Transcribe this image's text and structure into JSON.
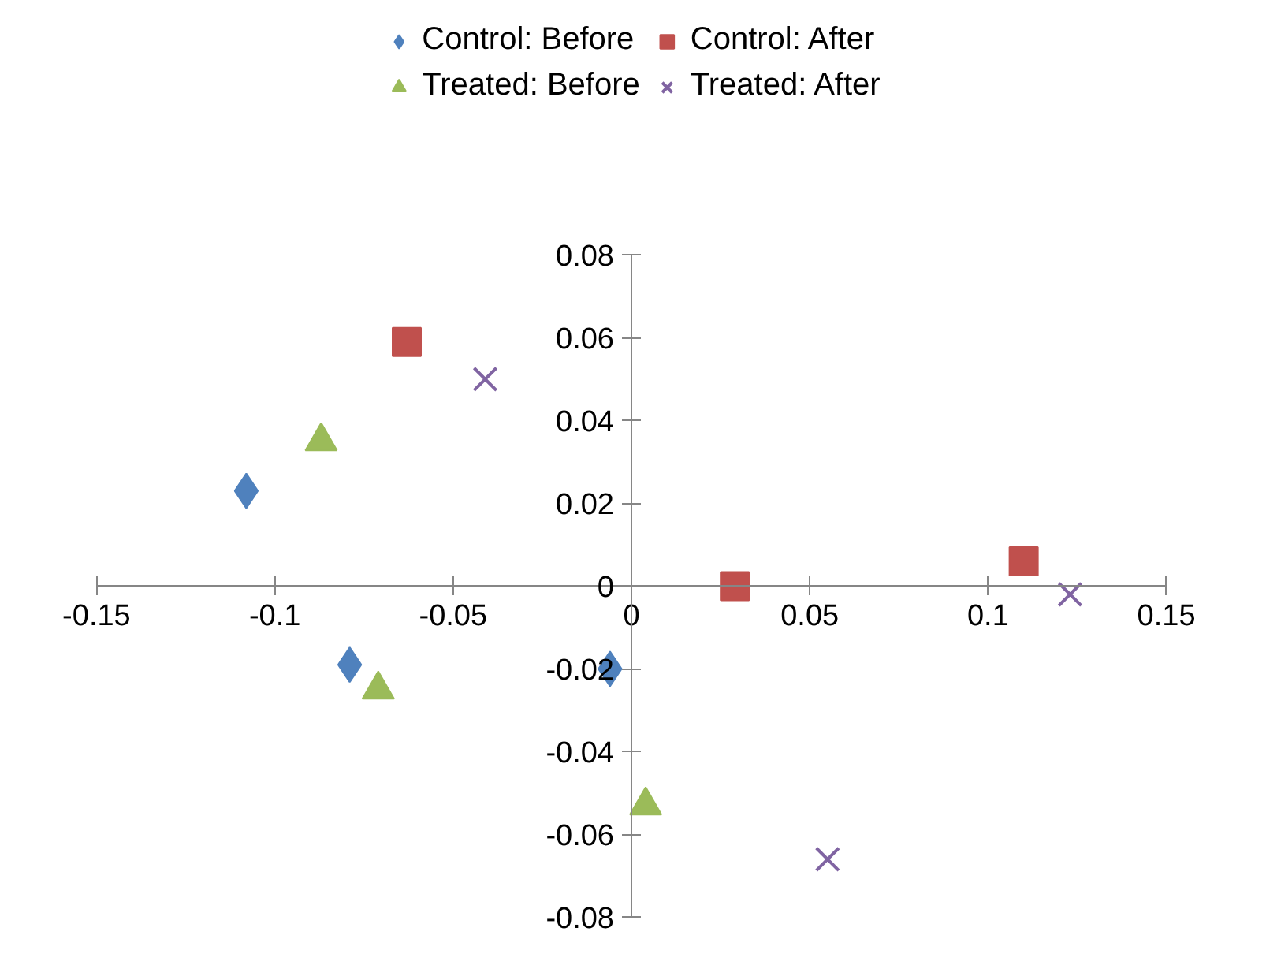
{
  "chart_data": {
    "type": "scatter",
    "xlim": [
      -0.15,
      0.15
    ],
    "xticks": [
      -0.15,
      -0.1,
      -0.05,
      0,
      0.05,
      0.1,
      0.15
    ],
    "ylim": [
      -0.08,
      0.08
    ],
    "yticks": [
      -0.08,
      -0.06,
      -0.04,
      -0.02,
      0,
      0.02,
      0.04,
      0.06,
      0.08
    ],
    "grid": false,
    "legend": "top",
    "series": [
      {
        "name": "Control: Before",
        "color": "#4f81bd",
        "marker": "diamond",
        "x": [
          -0.108,
          -0.079,
          -0.006
        ],
        "values": [
          0.023,
          -0.019,
          -0.02
        ]
      },
      {
        "name": "Control: After",
        "color": "#c0504d",
        "marker": "square",
        "x": [
          -0.063,
          0.029,
          0.11
        ],
        "values": [
          0.059,
          0.0,
          0.006
        ]
      },
      {
        "name": "Treated: Before",
        "color": "#9bbb59",
        "marker": "triangle",
        "x": [
          -0.087,
          -0.071,
          0.004
        ],
        "values": [
          0.035,
          -0.025,
          -0.053
        ]
      },
      {
        "name": "Treated: After",
        "color": "#8064a2",
        "marker": "x",
        "x": [
          -0.041,
          0.123,
          0.055
        ],
        "values": [
          0.05,
          -0.002,
          -0.066
        ]
      }
    ]
  }
}
